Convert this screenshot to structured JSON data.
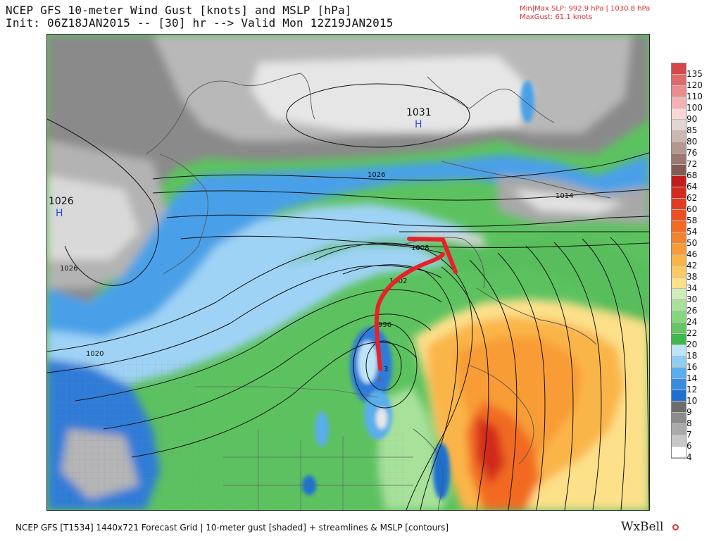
{
  "header": {
    "title_line1": "NCEP GFS 10-meter Wind Gust [knots] and MSLP [hPa]",
    "title_line2": "Init: 06Z18JAN2015 -- [30] hr --> Valid Mon 12Z19JAN2015",
    "minmax_slp": "Min|Max SLP: 992.9 hPa | 1030.8 hPa",
    "max_gust": "MaxGust:  61.1 knots"
  },
  "map": {
    "pressure_centers": [
      {
        "id": "high-north",
        "value": "1031",
        "letter": "H"
      },
      {
        "id": "high-west",
        "value": "1026",
        "letter": "H"
      },
      {
        "id": "low-south",
        "value": "",
        "letter": "L"
      }
    ],
    "isobar_labels": [
      "1026",
      "1026",
      "1020",
      "1014",
      "1008",
      "1002",
      "996",
      "3"
    ],
    "annotation_color": "#e8202a"
  },
  "colorbar": {
    "entries": [
      {
        "label": "135",
        "color": "#d6474a"
      },
      {
        "label": "120",
        "color": "#e0696b"
      },
      {
        "label": "110",
        "color": "#ea8d8e"
      },
      {
        "label": "100",
        "color": "#f5b2b2"
      },
      {
        "label": "90",
        "color": "#fbd8d6"
      },
      {
        "label": "85",
        "color": "#e3d5d3"
      },
      {
        "label": "80",
        "color": "#cdb7b3"
      },
      {
        "label": "76",
        "color": "#b59690"
      },
      {
        "label": "72",
        "color": "#9c7770"
      },
      {
        "label": "68",
        "color": "#835b54"
      },
      {
        "label": "64",
        "color": "#bf1e1e"
      },
      {
        "label": "62",
        "color": "#d12a1f"
      },
      {
        "label": "60",
        "color": "#e13a20"
      },
      {
        "label": "58",
        "color": "#ec4f22"
      },
      {
        "label": "54",
        "color": "#f26a24"
      },
      {
        "label": "50",
        "color": "#f5832b"
      },
      {
        "label": "46",
        "color": "#f89c35"
      },
      {
        "label": "42",
        "color": "#fab548"
      },
      {
        "label": "38",
        "color": "#fcca63"
      },
      {
        "label": "34",
        "color": "#fde08a"
      },
      {
        "label": "30",
        "color": "#cfeeb8"
      },
      {
        "label": "26",
        "color": "#a7e19a"
      },
      {
        "label": "24",
        "color": "#86d67f"
      },
      {
        "label": "22",
        "color": "#63c862"
      },
      {
        "label": "20",
        "color": "#3fb94a"
      },
      {
        "label": "18",
        "color": "#bde4f7"
      },
      {
        "label": "16",
        "color": "#8fcdf2"
      },
      {
        "label": "14",
        "color": "#5aaeec"
      },
      {
        "label": "12",
        "color": "#358ce0"
      },
      {
        "label": "10",
        "color": "#1f6fd1"
      },
      {
        "label": "9",
        "color": "#6d6d6d"
      },
      {
        "label": "8",
        "color": "#8c8c8c"
      },
      {
        "label": "7",
        "color": "#aaaaaa"
      },
      {
        "label": "6",
        "color": "#c8c8c8"
      },
      {
        "label": "4",
        "color": "#ffffff"
      }
    ]
  },
  "footer": {
    "text": "NCEP GFS [T1534] 1440x721 Forecast Grid | 10-meter gust [shaded] + streamlines & MSLP [contours]",
    "brand": "WxBell"
  }
}
